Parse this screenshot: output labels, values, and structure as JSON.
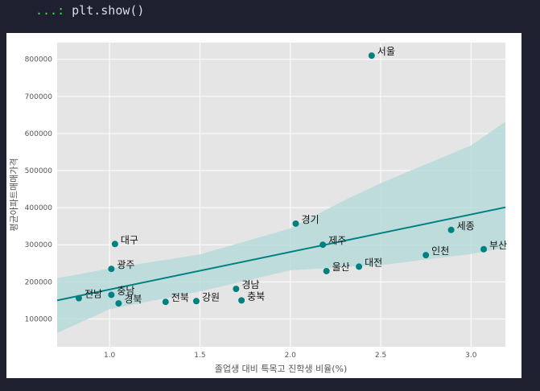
{
  "console": {
    "prompt": "...:",
    "code": "plt.show()"
  },
  "chart_data": {
    "type": "scatter",
    "xlabel": "졸업생 대비 특목고 진학생 비율(%)",
    "ylabel": "평균아파트매매가격",
    "xlim": [
      0.71,
      3.19
    ],
    "ylim": [
      25000,
      845000
    ],
    "xticks": [
      "1.0",
      "1.5",
      "2.0",
      "2.5",
      "3.0"
    ],
    "xtick_values": [
      1.0,
      1.5,
      2.0,
      2.5,
      3.0
    ],
    "yticks": [
      "100000",
      "200000",
      "300000",
      "400000",
      "500000",
      "600000",
      "700000",
      "800000"
    ],
    "ytick_values": [
      100000,
      200000,
      300000,
      400000,
      500000,
      600000,
      700000,
      800000
    ],
    "grid": true,
    "background": "#e5e5e5",
    "point_color": "#008080",
    "line_color": "#008080",
    "band_color": "#b9dada",
    "points": [
      {
        "label": "서울",
        "x": 2.45,
        "y": 810000
      },
      {
        "label": "세종",
        "x": 2.89,
        "y": 340000
      },
      {
        "label": "부산",
        "x": 3.07,
        "y": 288000
      },
      {
        "label": "인천",
        "x": 2.75,
        "y": 272000
      },
      {
        "label": "경기",
        "x": 2.03,
        "y": 357000
      },
      {
        "label": "제주",
        "x": 2.18,
        "y": 300000
      },
      {
        "label": "대전",
        "x": 2.38,
        "y": 241000
      },
      {
        "label": "울산",
        "x": 2.2,
        "y": 229000
      },
      {
        "label": "대구",
        "x": 1.03,
        "y": 302000
      },
      {
        "label": "광주",
        "x": 1.01,
        "y": 235000
      },
      {
        "label": "충남",
        "x": 1.01,
        "y": 165000
      },
      {
        "label": "전남",
        "x": 0.83,
        "y": 156000
      },
      {
        "label": "경북",
        "x": 1.05,
        "y": 142000
      },
      {
        "label": "전북",
        "x": 1.31,
        "y": 146000
      },
      {
        "label": "강원",
        "x": 1.48,
        "y": 148000
      },
      {
        "label": "경남",
        "x": 1.7,
        "y": 181000
      },
      {
        "label": "충북",
        "x": 1.73,
        "y": 150000
      }
    ],
    "regression": {
      "x": [
        0.71,
        3.19
      ],
      "y": [
        150000,
        401000
      ]
    },
    "confidence_band": {
      "x": [
        0.71,
        1.0,
        1.5,
        2.0,
        2.3,
        2.5,
        3.0,
        3.19
      ],
      "upper": [
        210000,
        236000,
        274000,
        344000,
        420000,
        466000,
        568000,
        632000
      ],
      "lower": [
        62000,
        126000,
        174000,
        231000,
        240000,
        245000,
        275000,
        292000
      ]
    }
  }
}
